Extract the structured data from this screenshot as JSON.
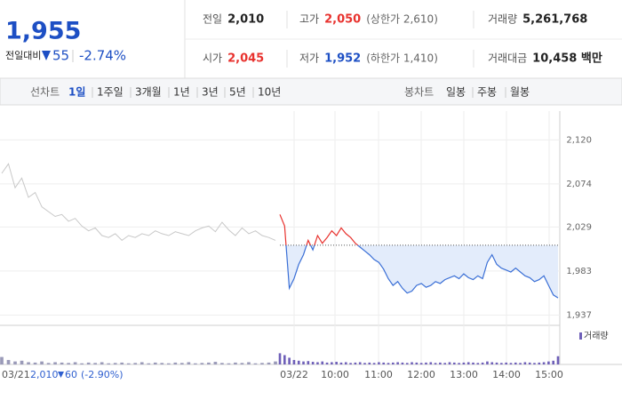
{
  "header": {
    "price": "1,955",
    "change_label": "전일대비",
    "change": "55",
    "change_pct": "-2.74%",
    "stats": [
      {
        "label": "전일",
        "value": "2,010"
      },
      {
        "label": "고가",
        "value": "2,050",
        "note": "(상한가 2,610)"
      },
      {
        "label": "거래량",
        "value": "5,261,768"
      },
      {
        "label": "시가",
        "value": "2,045"
      },
      {
        "label": "저가",
        "value": "1,952",
        "note": "(하한가 1,410)"
      },
      {
        "label": "거래대금",
        "value": "10,458 백만"
      }
    ]
  },
  "tabs": {
    "line_label": "선차트",
    "line_periods": [
      "1일",
      "1주일",
      "3개월",
      "1년",
      "3년",
      "5년",
      "10년"
    ],
    "candle_label": "봉차트",
    "candle_periods": [
      "일봉",
      "주봉",
      "월봉"
    ]
  },
  "chart_data": {
    "type": "line",
    "ylim": [
      1930,
      2150
    ],
    "yticks": [
      {
        "value": 2120,
        "label": "2,120"
      },
      {
        "value": 2074,
        "label": "2,074"
      },
      {
        "value": 2029,
        "label": "2,029"
      },
      {
        "value": 1983,
        "label": "1,983"
      },
      {
        "value": 1937,
        "label": "1,937"
      }
    ],
    "y2lim": [
      0,
      100
    ],
    "reference": 2010,
    "grid": true,
    "xlabels": [
      "03/21",
      "03/22",
      "10:00",
      "11:00",
      "12:00",
      "13:00",
      "14:00",
      "15:00"
    ],
    "volume_legend": "거래량",
    "footer": {
      "close": "2,010",
      "change": "60",
      "change_pct": "(-2.90%)"
    },
    "series": [
      {
        "color": "#c8c8c8",
        "values": [
          2085,
          2095,
          2070,
          2080,
          2060,
          2065,
          2050,
          2045,
          2040,
          2042,
          2035,
          2038,
          2030,
          2025,
          2028,
          2020,
          2018,
          2022,
          2015,
          2020,
          2018,
          2022,
          2020,
          2025,
          2022,
          2020,
          2024,
          2022,
          2020,
          2025,
          2028,
          2030,
          2024,
          2034,
          2026,
          2020,
          2028,
          2022,
          2025,
          2020,
          2018,
          2015
        ]
      },
      {
        "color": "#3a6fd6",
        "up_color": "#e8322e",
        "fill": "#e3ecfb",
        "values": [
          2042,
          2030,
          1965,
          1975,
          1990,
          2000,
          2015,
          2005,
          2020,
          2012,
          2018,
          2025,
          2020,
          2028,
          2022,
          2018,
          2012,
          2008,
          2004,
          2000,
          1995,
          1992,
          1985,
          1975,
          1968,
          1972,
          1965,
          1960,
          1962,
          1968,
          1970,
          1966,
          1968,
          1972,
          1970,
          1974,
          1976,
          1978,
          1975,
          1980,
          1976,
          1974,
          1978,
          1975,
          1992,
          2000,
          1990,
          1986,
          1984,
          1982,
          1986,
          1982,
          1978,
          1976,
          1972,
          1974,
          1978,
          1968,
          1958,
          1955
        ]
      },
      {
        "axis": "y2",
        "color": "#9a9ab8",
        "values": [
          20,
          12,
          8,
          10,
          6,
          5,
          8,
          4,
          6,
          5,
          4,
          6,
          3,
          5,
          4,
          6,
          3,
          4,
          5,
          3,
          4,
          6,
          3,
          5,
          4,
          3,
          5,
          4,
          6,
          3,
          4,
          5,
          7,
          4,
          3,
          5,
          4,
          6,
          3,
          4,
          5,
          8
        ]
      },
      {
        "axis": "y2",
        "color": "#6e5fb8",
        "values": [
          30,
          25,
          18,
          12,
          10,
          8,
          9,
          7,
          6,
          8,
          5,
          6,
          7,
          5,
          6,
          4,
          5,
          6,
          4,
          5,
          4,
          6,
          5,
          4,
          5,
          6,
          5,
          4,
          6,
          5,
          4,
          5,
          6,
          4,
          5,
          4,
          6,
          5,
          4,
          5,
          6,
          5,
          4,
          5,
          8,
          6,
          5,
          4,
          5,
          4,
          5,
          4,
          6,
          5,
          4,
          5,
          6,
          8,
          10,
          22
        ]
      }
    ]
  }
}
